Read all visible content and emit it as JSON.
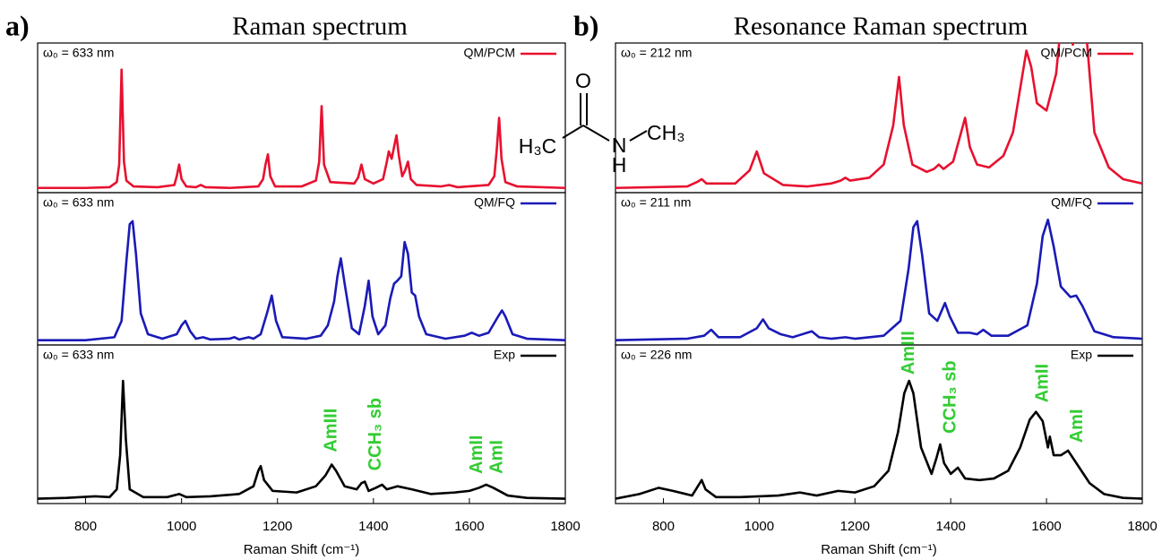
{
  "figure": {
    "panels": [
      {
        "label": "a)",
        "title": "Raman spectrum"
      },
      {
        "label": "b)",
        "title": "Resonance Raman spectrum"
      }
    ],
    "molecule": {
      "atoms": [
        "O",
        "H₃C",
        "N",
        "CH₃",
        "H"
      ]
    }
  },
  "chart_data": [
    {
      "type": "line",
      "annotation": "ω₀ = 633 nm",
      "xlim": [
        700,
        1800
      ],
      "ylim": [
        0,
        100
      ],
      "x": [
        700,
        800,
        850,
        865,
        870,
        875,
        880,
        885,
        900,
        950,
        985,
        990,
        995,
        1000,
        1010,
        1030,
        1040,
        1050,
        1100,
        1160,
        1170,
        1175,
        1180,
        1185,
        1195,
        1250,
        1280,
        1287,
        1292,
        1297,
        1310,
        1360,
        1368,
        1375,
        1382,
        1400,
        1420,
        1428,
        1432,
        1438,
        1443,
        1448,
        1453,
        1460,
        1466,
        1472,
        1478,
        1490,
        1540,
        1558,
        1575,
        1640,
        1652,
        1657,
        1662,
        1667,
        1675,
        1700,
        1800
      ],
      "series": [
        {
          "name": "QM/PCM",
          "color": "#e8102e",
          "values": [
            2,
            2,
            2.5,
            6,
            18,
            83,
            20,
            7,
            3,
            2.5,
            4,
            10,
            18,
            8,
            3,
            2.5,
            4,
            2.5,
            2,
            3,
            8,
            18,
            25,
            10,
            3,
            3,
            7,
            20,
            58,
            18,
            6,
            5,
            9,
            18,
            8,
            5,
            8,
            20,
            27,
            22,
            30,
            38,
            24,
            10,
            14,
            20,
            8,
            4,
            3,
            4,
            2.5,
            4,
            10,
            28,
            50,
            22,
            6,
            3,
            2
          ]
        }
      ]
    },
    {
      "type": "line",
      "annotation": "ω₀ = 633 nm",
      "xlim": [
        700,
        1800
      ],
      "ylim": [
        0,
        100
      ],
      "x": [
        700,
        800,
        860,
        875,
        885,
        892,
        898,
        905,
        915,
        930,
        960,
        990,
        1000,
        1008,
        1018,
        1030,
        1045,
        1060,
        1100,
        1110,
        1120,
        1140,
        1150,
        1165,
        1178,
        1188,
        1197,
        1210,
        1260,
        1290,
        1305,
        1318,
        1325,
        1332,
        1340,
        1355,
        1370,
        1382,
        1390,
        1398,
        1410,
        1425,
        1435,
        1443,
        1450,
        1458,
        1465,
        1472,
        1480,
        1487,
        1495,
        1510,
        1550,
        1590,
        1605,
        1620,
        1640,
        1660,
        1668,
        1675,
        1690,
        1720,
        1800
      ],
      "series": [
        {
          "name": "QM/FQ",
          "color": "#1a1ab8",
          "values": [
            2,
            2,
            4,
            15,
            55,
            80,
            82,
            60,
            20,
            6,
            3,
            6,
            12,
            15,
            8,
            3,
            4,
            2.5,
            3,
            4,
            2.5,
            4,
            3,
            6,
            20,
            32,
            15,
            4,
            3,
            5,
            12,
            28,
            45,
            57,
            40,
            10,
            6,
            25,
            42,
            18,
            6,
            12,
            30,
            40,
            42,
            45,
            68,
            60,
            34,
            32,
            18,
            6,
            3,
            5,
            7,
            5,
            7,
            18,
            22,
            18,
            6,
            3,
            2
          ]
        }
      ]
    },
    {
      "type": "line",
      "annotation": "ω₀ = 633 nm",
      "xlim": [
        700,
        1800
      ],
      "ylim": [
        0,
        100
      ],
      "xticks": [
        800,
        1000,
        1200,
        1400,
        1600,
        1800
      ],
      "xlabel": "Raman Shift (cm⁻¹)",
      "labels": [
        "AmIII",
        "CCH₃ sb",
        "AmII",
        "AmI"
      ],
      "label_color": "#33cc33",
      "x": [
        700,
        760,
        820,
        850,
        865,
        872,
        878,
        884,
        892,
        920,
        970,
        995,
        1010,
        1060,
        1120,
        1150,
        1160,
        1165,
        1172,
        1190,
        1240,
        1280,
        1300,
        1313,
        1322,
        1340,
        1365,
        1375,
        1382,
        1390,
        1405,
        1418,
        1428,
        1450,
        1480,
        1520,
        1570,
        1600,
        1620,
        1635,
        1650,
        1680,
        1720,
        1800
      ],
      "series": [
        {
          "name": "Exp",
          "color": "#000000",
          "values": [
            2,
            2.5,
            3.5,
            3,
            8,
            30,
            78,
            40,
            8,
            3,
            3,
            5,
            3,
            3.5,
            5,
            10,
            20,
            23,
            14,
            7,
            6,
            10,
            17,
            24,
            20,
            10,
            8,
            12,
            13,
            7,
            9,
            11,
            8,
            10,
            8,
            5,
            6,
            7,
            9,
            11,
            9,
            4,
            2.5,
            2
          ]
        }
      ]
    },
    {
      "type": "line",
      "annotation": "ω₀ = 212 nm",
      "xlim": [
        700,
        1800
      ],
      "ylim": [
        0,
        100
      ],
      "x": [
        700,
        850,
        870,
        880,
        890,
        950,
        980,
        995,
        1010,
        1050,
        1100,
        1150,
        1170,
        1180,
        1190,
        1230,
        1260,
        1280,
        1292,
        1302,
        1320,
        1350,
        1365,
        1375,
        1385,
        1405,
        1420,
        1430,
        1440,
        1455,
        1480,
        1510,
        1530,
        1545,
        1558,
        1568,
        1580,
        1600,
        1620,
        1635,
        1645,
        1655,
        1670,
        1685,
        1700,
        1730,
        1760,
        1800
      ],
      "series": [
        {
          "name": "QM/PCM",
          "color": "#e8102e",
          "values": [
            2,
            3,
            6,
            8,
            5,
            5,
            14,
            27,
            12,
            4,
            3,
            5,
            7,
            9,
            7,
            9,
            18,
            45,
            78,
            45,
            18,
            13,
            15,
            18,
            15,
            20,
            38,
            50,
            30,
            18,
            16,
            24,
            40,
            70,
            96,
            85,
            60,
            55,
            80,
            130,
            120,
            100,
            135,
            100,
            40,
            16,
            8,
            5
          ]
        }
      ]
    },
    {
      "type": "line",
      "annotation": "ω₀ = 211 nm",
      "xlim": [
        700,
        1800
      ],
      "ylim": [
        0,
        100
      ],
      "x": [
        700,
        850,
        885,
        900,
        915,
        960,
        995,
        1008,
        1020,
        1045,
        1070,
        1100,
        1110,
        1125,
        1150,
        1180,
        1200,
        1260,
        1295,
        1312,
        1322,
        1330,
        1340,
        1355,
        1372,
        1388,
        1398,
        1415,
        1440,
        1455,
        1468,
        1485,
        1520,
        1560,
        1580,
        1592,
        1603,
        1615,
        1630,
        1650,
        1662,
        1675,
        1700,
        1740,
        1800
      ],
      "series": [
        {
          "name": "QM/FQ",
          "color": "#1a1ab8",
          "values": [
            2,
            3,
            5,
            9,
            4,
            4,
            10,
            16,
            10,
            6,
            4,
            7,
            8,
            4,
            3,
            4,
            3,
            5,
            15,
            50,
            78,
            82,
            60,
            20,
            15,
            27,
            18,
            7,
            7,
            6,
            9,
            5,
            5,
            12,
            40,
            72,
            83,
            65,
            38,
            31,
            32,
            25,
            8,
            4,
            3
          ]
        }
      ]
    },
    {
      "type": "line",
      "annotation": "ω₀ = 226 nm",
      "xlim": [
        700,
        1800
      ],
      "ylim": [
        0,
        100
      ],
      "xticks": [
        800,
        1000,
        1200,
        1400,
        1600,
        1800
      ],
      "xlabel": "Raman Shift (cm⁻¹)",
      "labels": [
        "AmIII",
        "CCH₃ sb",
        "AmII",
        "AmI"
      ],
      "label_color": "#33cc33",
      "x": [
        700,
        750,
        790,
        820,
        860,
        872,
        880,
        888,
        910,
        960,
        1040,
        1085,
        1120,
        1165,
        1200,
        1240,
        1270,
        1290,
        1303,
        1313,
        1322,
        1338,
        1360,
        1370,
        1378,
        1386,
        1400,
        1415,
        1430,
        1460,
        1490,
        1520,
        1545,
        1565,
        1578,
        1592,
        1603,
        1607,
        1615,
        1630,
        1645,
        1660,
        1690,
        1720,
        1760,
        1800
      ],
      "series": [
        {
          "name": "Exp",
          "color": "#000000",
          "values": [
            2,
            5,
            9,
            7,
            4,
            10,
            14,
            8,
            3,
            3,
            4,
            6,
            4,
            7,
            6,
            10,
            20,
            45,
            70,
            78,
            70,
            35,
            18,
            28,
            37,
            25,
            18,
            22,
            15,
            14,
            15,
            20,
            35,
            53,
            58,
            52,
            35,
            42,
            30,
            30,
            33,
            26,
            12,
            5,
            2.5,
            2
          ]
        }
      ]
    }
  ]
}
